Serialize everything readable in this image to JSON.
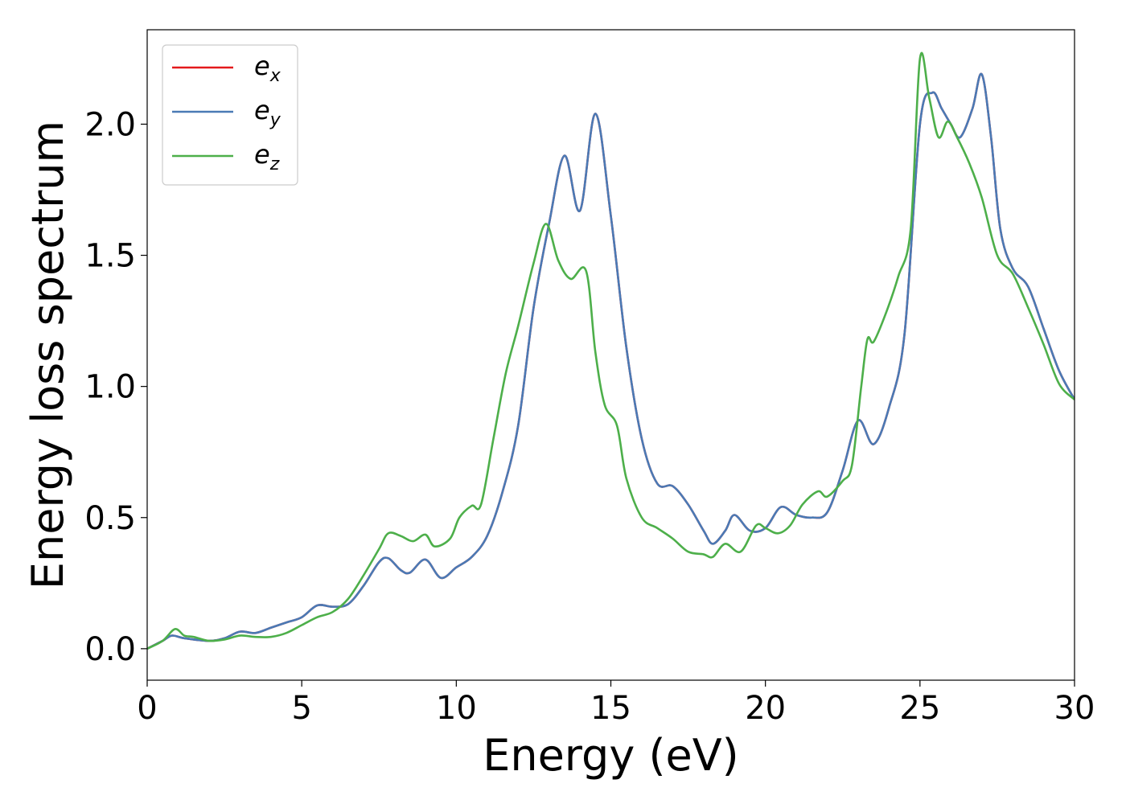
{
  "chart_data": {
    "type": "line",
    "xlabel": "Energy (eV)",
    "ylabel": "Energy loss spectrum",
    "xlim": [
      0,
      30
    ],
    "ylim": [
      -0.12,
      2.36
    ],
    "xticks": [
      0,
      5,
      10,
      15,
      20,
      25,
      30
    ],
    "xtick_labels": [
      "0",
      "5",
      "10",
      "15",
      "20",
      "25",
      "30"
    ],
    "yticks": [
      0.0,
      0.5,
      1.0,
      1.5,
      2.0
    ],
    "ytick_labels": [
      "0.0",
      "0.5",
      "1.0",
      "1.5",
      "2.0"
    ],
    "grid": false,
    "legend_position": "top-left",
    "series": [
      {
        "name": "e_x",
        "legend_main": "e",
        "legend_sub": "x",
        "color": "#e41a1c",
        "x": [
          0,
          0.5,
          0.8,
          1.2,
          2.0,
          2.5,
          3.0,
          3.5,
          4.0,
          4.5,
          5.0,
          5.5,
          6.0,
          6.5,
          7.0,
          7.5,
          7.8,
          8.2,
          8.5,
          9.0,
          9.5,
          10.0,
          10.5,
          11.0,
          11.5,
          12.0,
          12.5,
          13.0,
          13.5,
          14.0,
          14.5,
          15.0,
          15.5,
          16.0,
          16.5,
          17.0,
          17.5,
          18.0,
          18.3,
          18.7,
          19.0,
          19.5,
          20.0,
          20.5,
          21.0,
          21.5,
          22.0,
          22.5,
          23.0,
          23.5,
          24.0,
          24.5,
          25.0,
          25.4,
          25.7,
          26.0,
          26.3,
          26.7,
          27.0,
          27.3,
          27.6,
          28.0,
          28.5,
          29.0,
          29.5,
          30.0
        ],
        "y": [
          0.0,
          0.03,
          0.05,
          0.04,
          0.03,
          0.04,
          0.065,
          0.06,
          0.08,
          0.1,
          0.12,
          0.165,
          0.16,
          0.17,
          0.24,
          0.33,
          0.345,
          0.3,
          0.29,
          0.34,
          0.27,
          0.31,
          0.35,
          0.43,
          0.6,
          0.85,
          1.3,
          1.62,
          1.88,
          1.67,
          2.04,
          1.65,
          1.15,
          0.8,
          0.63,
          0.62,
          0.55,
          0.45,
          0.4,
          0.45,
          0.51,
          0.45,
          0.46,
          0.54,
          0.51,
          0.5,
          0.52,
          0.68,
          0.87,
          0.78,
          0.92,
          1.2,
          2.0,
          2.12,
          2.06,
          2.0,
          1.95,
          2.06,
          2.19,
          1.95,
          1.6,
          1.45,
          1.38,
          1.22,
          1.06,
          0.95
        ]
      },
      {
        "name": "e_y",
        "legend_main": "e",
        "legend_sub": "y",
        "color": "#4a7ab5",
        "x": [
          0,
          0.5,
          0.8,
          1.2,
          2.0,
          2.5,
          3.0,
          3.5,
          4.0,
          4.5,
          5.0,
          5.5,
          6.0,
          6.5,
          7.0,
          7.5,
          7.8,
          8.2,
          8.5,
          9.0,
          9.5,
          10.0,
          10.5,
          11.0,
          11.5,
          12.0,
          12.5,
          13.0,
          13.5,
          14.0,
          14.5,
          15.0,
          15.5,
          16.0,
          16.5,
          17.0,
          17.5,
          18.0,
          18.3,
          18.7,
          19.0,
          19.5,
          20.0,
          20.5,
          21.0,
          21.5,
          22.0,
          22.5,
          23.0,
          23.5,
          24.0,
          24.5,
          25.0,
          25.4,
          25.7,
          26.0,
          26.3,
          26.7,
          27.0,
          27.3,
          27.6,
          28.0,
          28.5,
          29.0,
          29.5,
          30.0
        ],
        "y": [
          0.0,
          0.03,
          0.05,
          0.04,
          0.03,
          0.04,
          0.065,
          0.06,
          0.08,
          0.1,
          0.12,
          0.165,
          0.16,
          0.17,
          0.24,
          0.33,
          0.345,
          0.3,
          0.29,
          0.34,
          0.27,
          0.31,
          0.35,
          0.43,
          0.6,
          0.85,
          1.3,
          1.62,
          1.88,
          1.67,
          2.04,
          1.65,
          1.15,
          0.8,
          0.63,
          0.62,
          0.55,
          0.45,
          0.4,
          0.45,
          0.51,
          0.45,
          0.46,
          0.54,
          0.51,
          0.5,
          0.52,
          0.68,
          0.87,
          0.78,
          0.92,
          1.2,
          2.0,
          2.12,
          2.06,
          2.0,
          1.95,
          2.06,
          2.19,
          1.95,
          1.6,
          1.45,
          1.38,
          1.22,
          1.06,
          0.95
        ]
      },
      {
        "name": "e_z",
        "legend_main": "e",
        "legend_sub": "z",
        "color": "#4daf4a",
        "x": [
          0,
          0.5,
          0.9,
          1.2,
          1.5,
          2.0,
          2.5,
          3.0,
          3.5,
          4.0,
          4.5,
          5.0,
          5.5,
          6.0,
          6.5,
          7.0,
          7.5,
          7.8,
          8.2,
          8.6,
          9.0,
          9.3,
          9.8,
          10.1,
          10.5,
          10.8,
          11.2,
          11.6,
          12.0,
          12.5,
          12.9,
          13.3,
          13.7,
          14.2,
          14.5,
          14.8,
          15.2,
          15.5,
          16.0,
          16.5,
          17.0,
          17.5,
          18.0,
          18.3,
          18.7,
          19.2,
          19.7,
          20.0,
          20.4,
          20.8,
          21.2,
          21.7,
          22.0,
          22.5,
          22.8,
          23.1,
          23.3,
          23.5,
          23.9,
          24.3,
          24.7,
          25.0,
          25.3,
          25.6,
          25.9,
          26.2,
          26.6,
          27.0,
          27.5,
          28.0,
          28.5,
          29.0,
          29.5,
          30.0
        ],
        "y": [
          0.0,
          0.03,
          0.075,
          0.05,
          0.045,
          0.03,
          0.035,
          0.05,
          0.045,
          0.045,
          0.06,
          0.09,
          0.12,
          0.14,
          0.19,
          0.28,
          0.38,
          0.44,
          0.43,
          0.41,
          0.435,
          0.39,
          0.42,
          0.5,
          0.545,
          0.55,
          0.8,
          1.05,
          1.23,
          1.47,
          1.62,
          1.48,
          1.41,
          1.44,
          1.13,
          0.93,
          0.85,
          0.65,
          0.5,
          0.46,
          0.42,
          0.37,
          0.36,
          0.35,
          0.4,
          0.37,
          0.47,
          0.46,
          0.44,
          0.47,
          0.55,
          0.6,
          0.58,
          0.64,
          0.7,
          1.0,
          1.18,
          1.17,
          1.28,
          1.42,
          1.6,
          2.25,
          2.1,
          1.95,
          2.01,
          1.95,
          1.85,
          1.72,
          1.5,
          1.43,
          1.3,
          1.16,
          1.01,
          0.95
        ]
      }
    ]
  }
}
